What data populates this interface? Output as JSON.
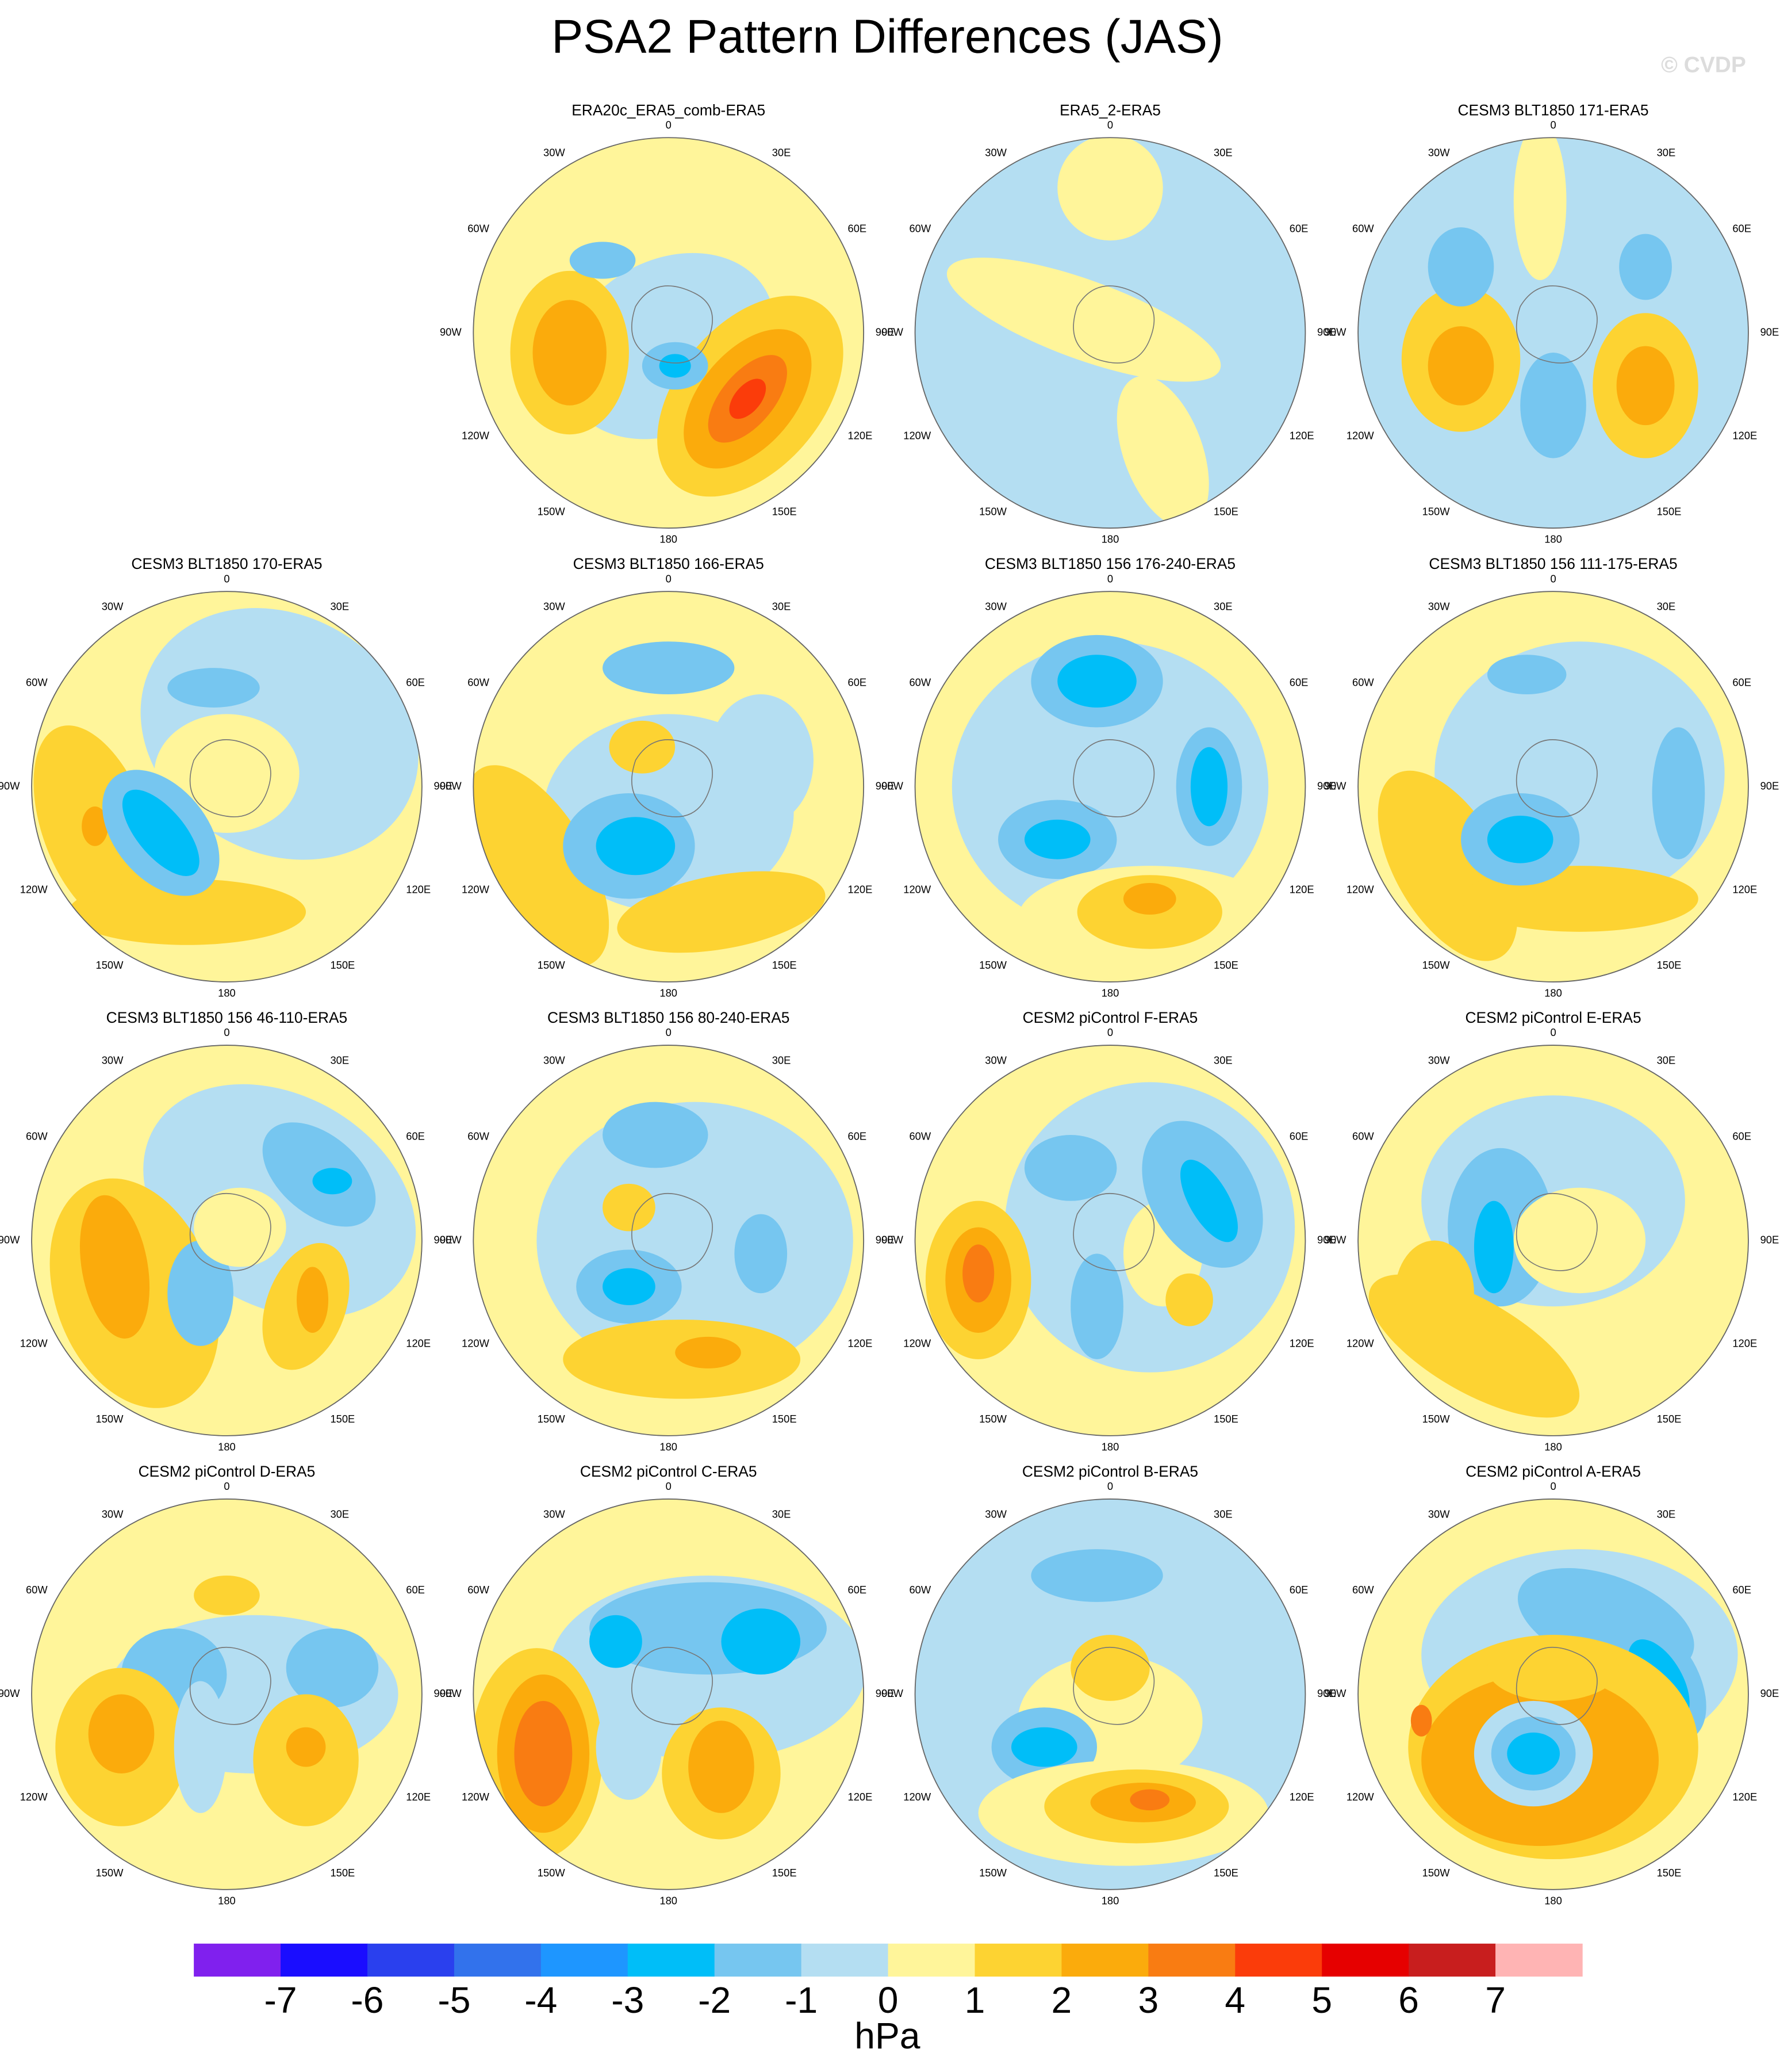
{
  "chart_data": {
    "type": "map",
    "title": "PSA2 Pattern Differences (JAS)",
    "watermark": "© CVDP",
    "panels": [
      {
        "title": "ERA20c_ERA5_comb-ERA5"
      },
      {
        "title": "ERA5_2-ERA5"
      },
      {
        "title": "CESM3 BLT1850 171-ERA5"
      },
      {
        "title": "CESM3 BLT1850 170-ERA5"
      },
      {
        "title": "CESM3 BLT1850 166-ERA5"
      },
      {
        "title": "CESM3 BLT1850 156 176-240-ERA5"
      },
      {
        "title": "CESM3 BLT1850 156 111-175-ERA5"
      },
      {
        "title": "CESM3 BLT1850 156 46-110-ERA5"
      },
      {
        "title": "CESM3 BLT1850 156 80-240-ERA5"
      },
      {
        "title": "CESM2 piControl F-ERA5"
      },
      {
        "title": "CESM2 piControl E-ERA5"
      },
      {
        "title": "CESM2 piControl D-ERA5"
      },
      {
        "title": "CESM2 piControl C-ERA5"
      },
      {
        "title": "CESM2 piControl B-ERA5"
      },
      {
        "title": "CESM2 piControl A-ERA5"
      }
    ],
    "lon_labels": [
      "0",
      "30E",
      "60E",
      "90E",
      "120E",
      "150E",
      "180",
      "150W",
      "120W",
      "90W",
      "60W",
      "30W"
    ],
    "colorbar": {
      "label": "hPa",
      "ticks": [
        -7,
        -6,
        -5,
        -4,
        -3,
        -2,
        -1,
        0,
        1,
        2,
        3,
        4,
        5,
        6,
        7
      ],
      "colors": [
        "#8020ee",
        "#1a0dff",
        "#2a40ee",
        "#3272ec",
        "#1e96ff",
        "#00bef8",
        "#76c6f0",
        "#b4def2",
        "#fff59a",
        "#fdd332",
        "#fbab0c",
        "#f97c12",
        "#fb3c0a",
        "#e60000",
        "#c81e1e",
        "#ffb4b4"
      ]
    }
  }
}
